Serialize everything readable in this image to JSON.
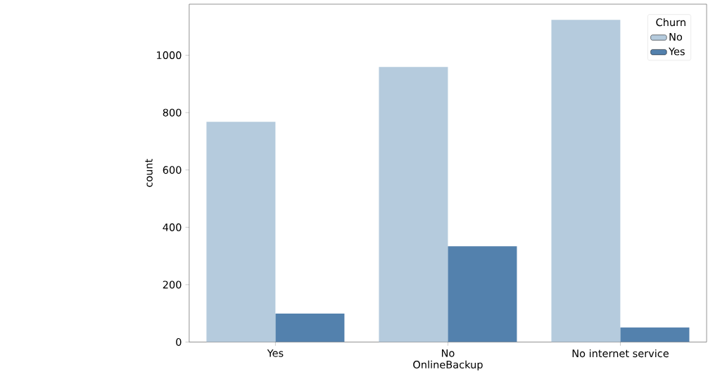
{
  "chart_data": {
    "type": "bar",
    "xlabel": "OnlineBackup",
    "ylabel": "count",
    "legend_title": "Churn",
    "categories": [
      "Yes",
      "No",
      "No internet service"
    ],
    "series": [
      {
        "name": "No",
        "color": "#b5cbdd",
        "values": [
          768,
          959,
          1123
        ]
      },
      {
        "name": "Yes",
        "color": "#5381ad",
        "values": [
          99,
          334,
          51
        ]
      }
    ],
    "ylim": [
      0,
      1178
    ],
    "yticks": [
      0,
      200,
      400,
      600,
      800,
      1000
    ],
    "legend": "top right"
  }
}
